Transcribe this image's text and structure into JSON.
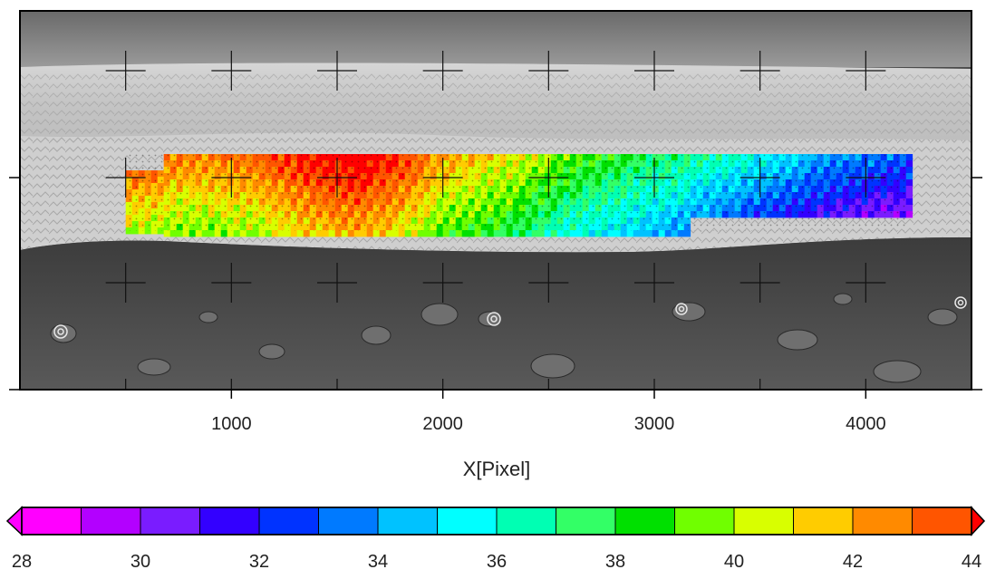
{
  "chart_data": {
    "type": "heatmap",
    "title": "",
    "xlabel": "X[Pixel]",
    "ylabel": "",
    "xlim": [
      0,
      4500
    ],
    "x_ticks": [
      1000,
      2000,
      3000,
      4000
    ],
    "x_tick_labels": [
      "1000",
      "2000",
      "3000",
      "4000"
    ],
    "grid": false,
    "background": "grayscale terrain photograph with an ice cliff",
    "overlay_region": {
      "x_start": 500,
      "x_end": 4200,
      "x_step_end": 3150
    },
    "value_profile": {
      "x": [
        500,
        800,
        1100,
        1400,
        1600,
        1800,
        2000,
        2300,
        2600,
        3000,
        3400,
        3800,
        4200
      ],
      "values": [
        41.5,
        41.0,
        41.5,
        43.0,
        43.5,
        42.5,
        40.5,
        39.5,
        37.5,
        36.0,
        34.5,
        32.5,
        31.5
      ]
    },
    "colorbar": {
      "min": 28,
      "max": 44,
      "step": 1,
      "extend": "both",
      "tick_labels": [
        "28",
        "30",
        "32",
        "34",
        "36",
        "38",
        "40",
        "42",
        "44"
      ],
      "tick_values": [
        28,
        30,
        32,
        34,
        36,
        38,
        40,
        42,
        44
      ],
      "colors": [
        "#ff00ff",
        "#b300ff",
        "#7a1cff",
        "#3300ff",
        "#0033ff",
        "#007aff",
        "#00c2ff",
        "#00ffff",
        "#00ffb3",
        "#33ff66",
        "#00e000",
        "#70ff00",
        "#d8ff00",
        "#ffcc00",
        "#ff8a00",
        "#ff5500",
        "#ff0000"
      ]
    }
  }
}
